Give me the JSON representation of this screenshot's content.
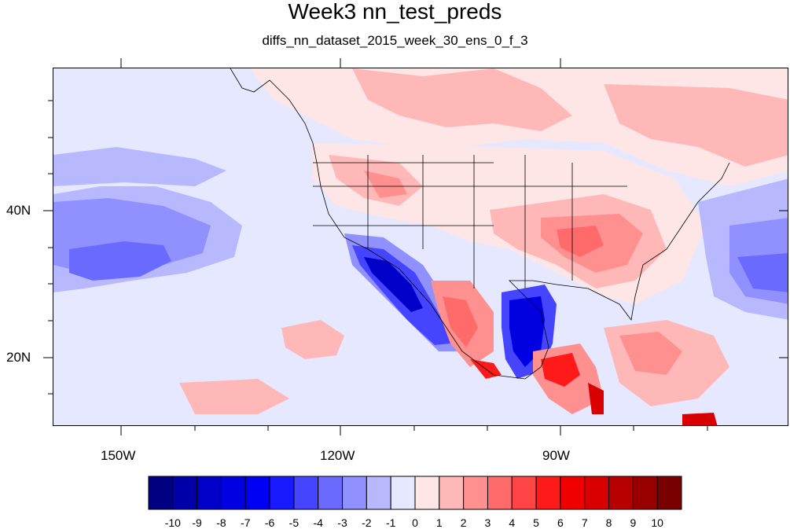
{
  "title": "Week3 nn_test_preds",
  "subtitle": "diffs_nn_dataset_2015_week_30_ens_0_f_3",
  "axes": {
    "x_labels": [
      "150W",
      "120W",
      "90W"
    ],
    "y_labels": [
      "40N",
      "20N"
    ]
  },
  "colorbar": {
    "labels": [
      "-10",
      "-9",
      "-8",
      "-7",
      "-6",
      "-5",
      "-4",
      "-3",
      "-2",
      "-1",
      "0",
      "1",
      "2",
      "3",
      "4",
      "5",
      "6",
      "7",
      "8",
      "9",
      "10"
    ],
    "colors": [
      "#000080",
      "#0000a8",
      "#0000c8",
      "#0000e0",
      "#0000f5",
      "#1a1aff",
      "#4545ff",
      "#6a6aff",
      "#9090ff",
      "#b8b8ff",
      "#e6e8ff",
      "#ffe6e6",
      "#ffb8b8",
      "#ff9090",
      "#ff6a6a",
      "#ff4545",
      "#ff1a1a",
      "#f00000",
      "#d80000",
      "#b80000",
      "#980000",
      "#780000"
    ]
  },
  "palette": {
    "ocean_light_blue": "#e6e8ff",
    "pale_blue": "#b8b8ff",
    "mid_blue": "#9090ff",
    "strong_blue": "#4545ff",
    "deep_blue": "#0000c8",
    "pale_red": "#ffe6e6",
    "light_red": "#ffb8b8",
    "mid_red": "#ff9090",
    "strong_red": "#ff4545",
    "deep_red": "#d80000"
  }
}
